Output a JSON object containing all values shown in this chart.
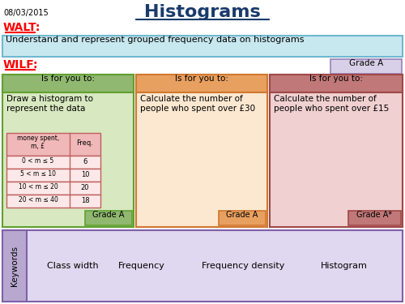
{
  "title": "Histograms",
  "date": "08/03/2015",
  "walt_label": "WALT:",
  "walt_text": "Understand and represent grouped frequency data on histograms",
  "wilf_label": "WILF:",
  "grade_a_box": "Grade A",
  "box1_header": "Is for you to:",
  "box1_text": "Draw a histogram to\nrepresent the data",
  "box1_grade": "Grade A",
  "box2_header": "Is for you to:",
  "box2_text": "Calculate the number of\npeople who spent over £30",
  "box2_grade": "Grade A",
  "box3_header": "Is for you to:",
  "box3_text": "Calculate the number of\npeople who spent over £15",
  "box3_grade": "Grade A*",
  "table_headers": [
    "money spent,\nm, £",
    "Freq."
  ],
  "table_rows": [
    [
      "0 < m ≤ 5",
      "6"
    ],
    [
      "5 < m ≤ 10",
      "10"
    ],
    [
      "10 < m ≤ 20",
      "20"
    ],
    [
      "20 < m ≤ 40",
      "18"
    ]
  ],
  "keywords": [
    "Class width",
    "Frequency",
    "Frequency density",
    "Histogram"
  ],
  "keywords_label": "Keywords",
  "bg_color": "#ffffff",
  "title_color": "#1a3a6b",
  "walt_color": "#ff0000",
  "wilf_color": "#ff0000",
  "walt_box_color": "#c8e8f0",
  "walt_box_edge": "#70b8d0",
  "grade_a_top_color": "#d8d0e8",
  "grade_a_top_edge": "#9880b8",
  "box1_header_color": "#90b870",
  "box1_body_color": "#d8e8c0",
  "box1_edge": "#60a030",
  "box1_grade_color": "#90b870",
  "box2_header_color": "#e8a060",
  "box2_body_color": "#fce8d0",
  "box2_edge": "#d07830",
  "box2_grade_color": "#e8a060",
  "box3_header_color": "#c07878",
  "box3_body_color": "#f0d0d0",
  "box3_edge": "#a04848",
  "box3_grade_color": "#c07878",
  "table_header_color": "#f0b8b8",
  "table_row_color": "#fce8e8",
  "table_edge": "#c06060",
  "keywords_sidebar_color": "#b8a8d0",
  "keywords_sidebar_edge": "#8060a8",
  "keywords_body_color": "#e0d8f0",
  "keywords_body_edge": "#8060a8"
}
